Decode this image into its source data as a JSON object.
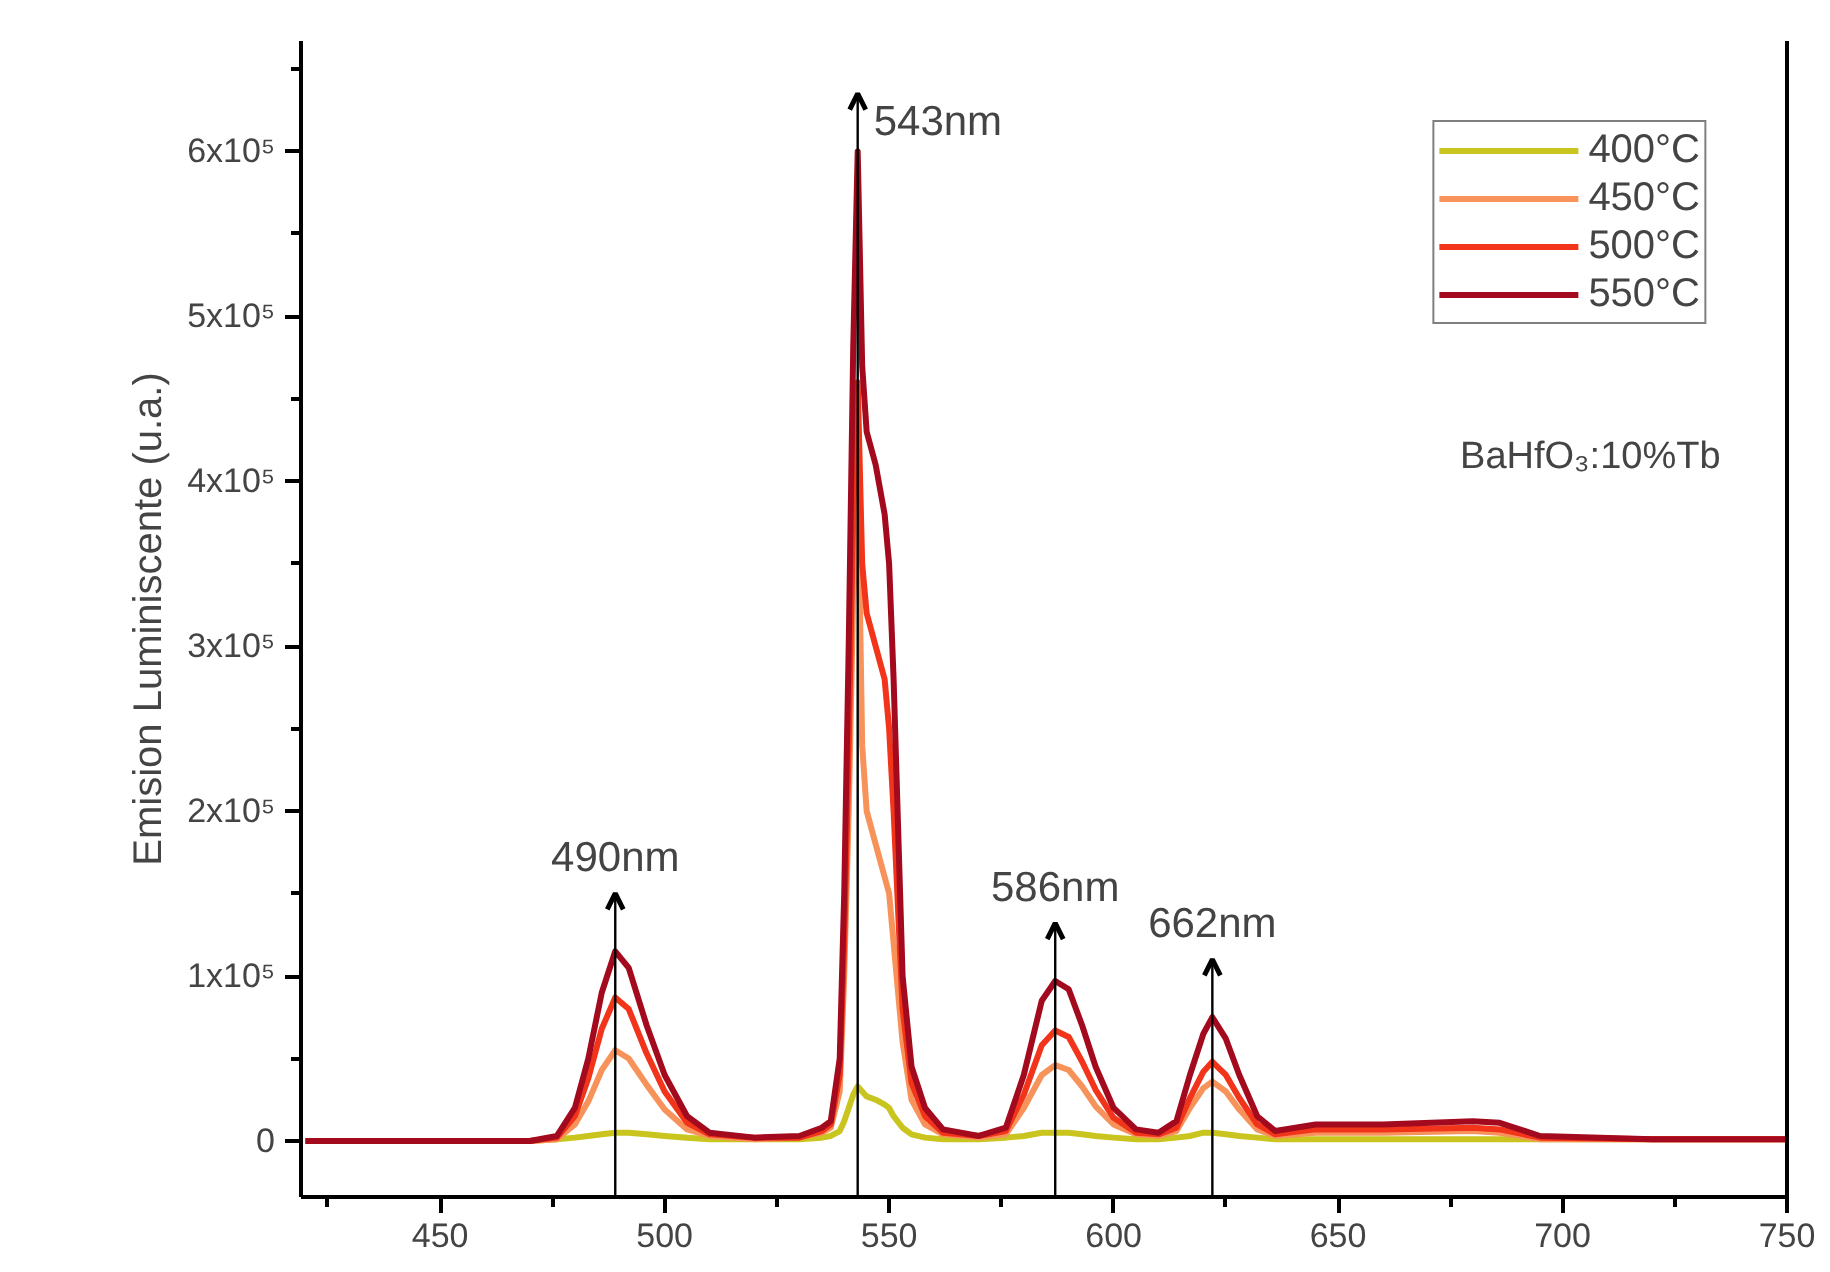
{
  "chart_data": {
    "type": "line",
    "ylabel": "Emision Luminiscente (u.a.)",
    "x": [
      420,
      470,
      476,
      480,
      483,
      486,
      489,
      492,
      496,
      500,
      505,
      510,
      520,
      530,
      535,
      537,
      539,
      540,
      541,
      542,
      543,
      544,
      545,
      547,
      549,
      550,
      551,
      553,
      555,
      558,
      562,
      570,
      576,
      580,
      584,
      587,
      590,
      593,
      596,
      600,
      605,
      610,
      614,
      617,
      620,
      622,
      625,
      628,
      632,
      636,
      645,
      660,
      680,
      686,
      695,
      720,
      750
    ],
    "series": [
      {
        "name": "400°C",
        "color": "#c9c41e",
        "values": [
          0,
          0,
          1000,
          2000,
          3000,
          4000,
          5000,
          5000,
          4000,
          3000,
          2000,
          1000,
          1000,
          1000,
          2000,
          3000,
          6000,
          12000,
          20000,
          28000,
          33000,
          30000,
          27000,
          25000,
          22000,
          20000,
          15000,
          8000,
          4000,
          2000,
          1000,
          1000,
          2000,
          3000,
          5000,
          5000,
          5000,
          4000,
          3000,
          2000,
          1000,
          1000,
          2000,
          3000,
          5000,
          5000,
          4000,
          3000,
          2000,
          1000,
          1000,
          1000,
          1000,
          1000,
          1000,
          1000,
          1000
        ]
      },
      {
        "name": "450°C",
        "color": "#f7935a",
        "values": [
          0,
          0,
          1000,
          10000,
          24000,
          43000,
          55000,
          50000,
          34000,
          19000,
          7000,
          3000,
          1000,
          2000,
          5000,
          8000,
          30000,
          100000,
          200000,
          330000,
          410000,
          240000,
          200000,
          180000,
          160000,
          150000,
          120000,
          60000,
          25000,
          10000,
          4000,
          2000,
          4000,
          20000,
          40000,
          46000,
          43000,
          33000,
          21000,
          10000,
          4000,
          3000,
          6000,
          20000,
          32000,
          36000,
          30000,
          19000,
          7000,
          3000,
          5000,
          5000,
          6000,
          5000,
          1000,
          1000,
          1000
        ]
      },
      {
        "name": "500°C",
        "color": "#f2341a",
        "values": [
          0,
          0,
          2000,
          15000,
          38000,
          68000,
          87000,
          80000,
          53000,
          30000,
          11000,
          4000,
          2000,
          2000,
          6000,
          10000,
          40000,
          120000,
          240000,
          380000,
          460000,
          350000,
          320000,
          300000,
          280000,
          250000,
          200000,
          80000,
          35000,
          15000,
          5000,
          3000,
          6000,
          28000,
          58000,
          67000,
          63000,
          48000,
          31000,
          14000,
          5000,
          4000,
          8000,
          26000,
          42000,
          48000,
          40000,
          26000,
          10000,
          4000,
          7000,
          7000,
          8000,
          7000,
          2000,
          1000,
          1000
        ]
      },
      {
        "name": "550°C",
        "color": "#a30a1e",
        "values": [
          0,
          0,
          3000,
          20000,
          50000,
          90000,
          115000,
          105000,
          70000,
          40000,
          15000,
          5000,
          2000,
          3000,
          8000,
          12000,
          50000,
          150000,
          300000,
          480000,
          600000,
          470000,
          430000,
          410000,
          380000,
          350000,
          280000,
          100000,
          45000,
          20000,
          7000,
          3000,
          8000,
          40000,
          85000,
          97000,
          92000,
          70000,
          45000,
          20000,
          7000,
          5000,
          12000,
          40000,
          65000,
          75000,
          62000,
          40000,
          15000,
          6000,
          10000,
          10000,
          12000,
          11000,
          3000,
          1000,
          1000
        ]
      }
    ],
    "xlim": [
      419,
      750
    ],
    "ylim": [
      -34000,
      667000
    ],
    "xticks": [
      {
        "value": 425,
        "label": null
      },
      450,
      {
        "value": 475,
        "label": null
      },
      500,
      {
        "value": 525,
        "label": null
      },
      550,
      {
        "value": 575,
        "label": null
      },
      600,
      {
        "value": 625,
        "label": null
      },
      650,
      {
        "value": 675,
        "label": null
      },
      700,
      {
        "value": 725,
        "label": null
      },
      750
    ],
    "yticks": [
      0,
      {
        "value": 50000,
        "label": null
      },
      {
        "value": 100000,
        "label": "1x10⁵"
      },
      {
        "value": 150000,
        "label": null
      },
      {
        "value": 200000,
        "label": "2x10⁵"
      },
      {
        "value": 250000,
        "label": null
      },
      {
        "value": 300000,
        "label": "3x10⁵"
      },
      {
        "value": 350000,
        "label": null
      },
      {
        "value": 400000,
        "label": "4x10⁵"
      },
      {
        "value": 450000,
        "label": null
      },
      {
        "value": 500000,
        "label": "5x10⁵"
      },
      {
        "value": 550000,
        "label": null
      },
      {
        "value": 600000,
        "label": "6x10⁵"
      },
      {
        "value": 650000,
        "label": null
      }
    ],
    "ref_lines": [
      {
        "axis": "x",
        "value": 489,
        "label": "490nm",
        "color": "#000000"
      },
      {
        "axis": "x",
        "value": 543,
        "label": "543nm",
        "color": "#000000"
      },
      {
        "axis": "x",
        "value": 587,
        "label": "586nm",
        "color": "#000000"
      },
      {
        "axis": "x",
        "value": 622,
        "label": "662nm",
        "color": "#000000"
      }
    ],
    "annotations": [
      "BaHfO₃:10%Tb"
    ],
    "grid": false,
    "legend": "top right",
    "marker": "none",
    "line_style": "solid"
  }
}
